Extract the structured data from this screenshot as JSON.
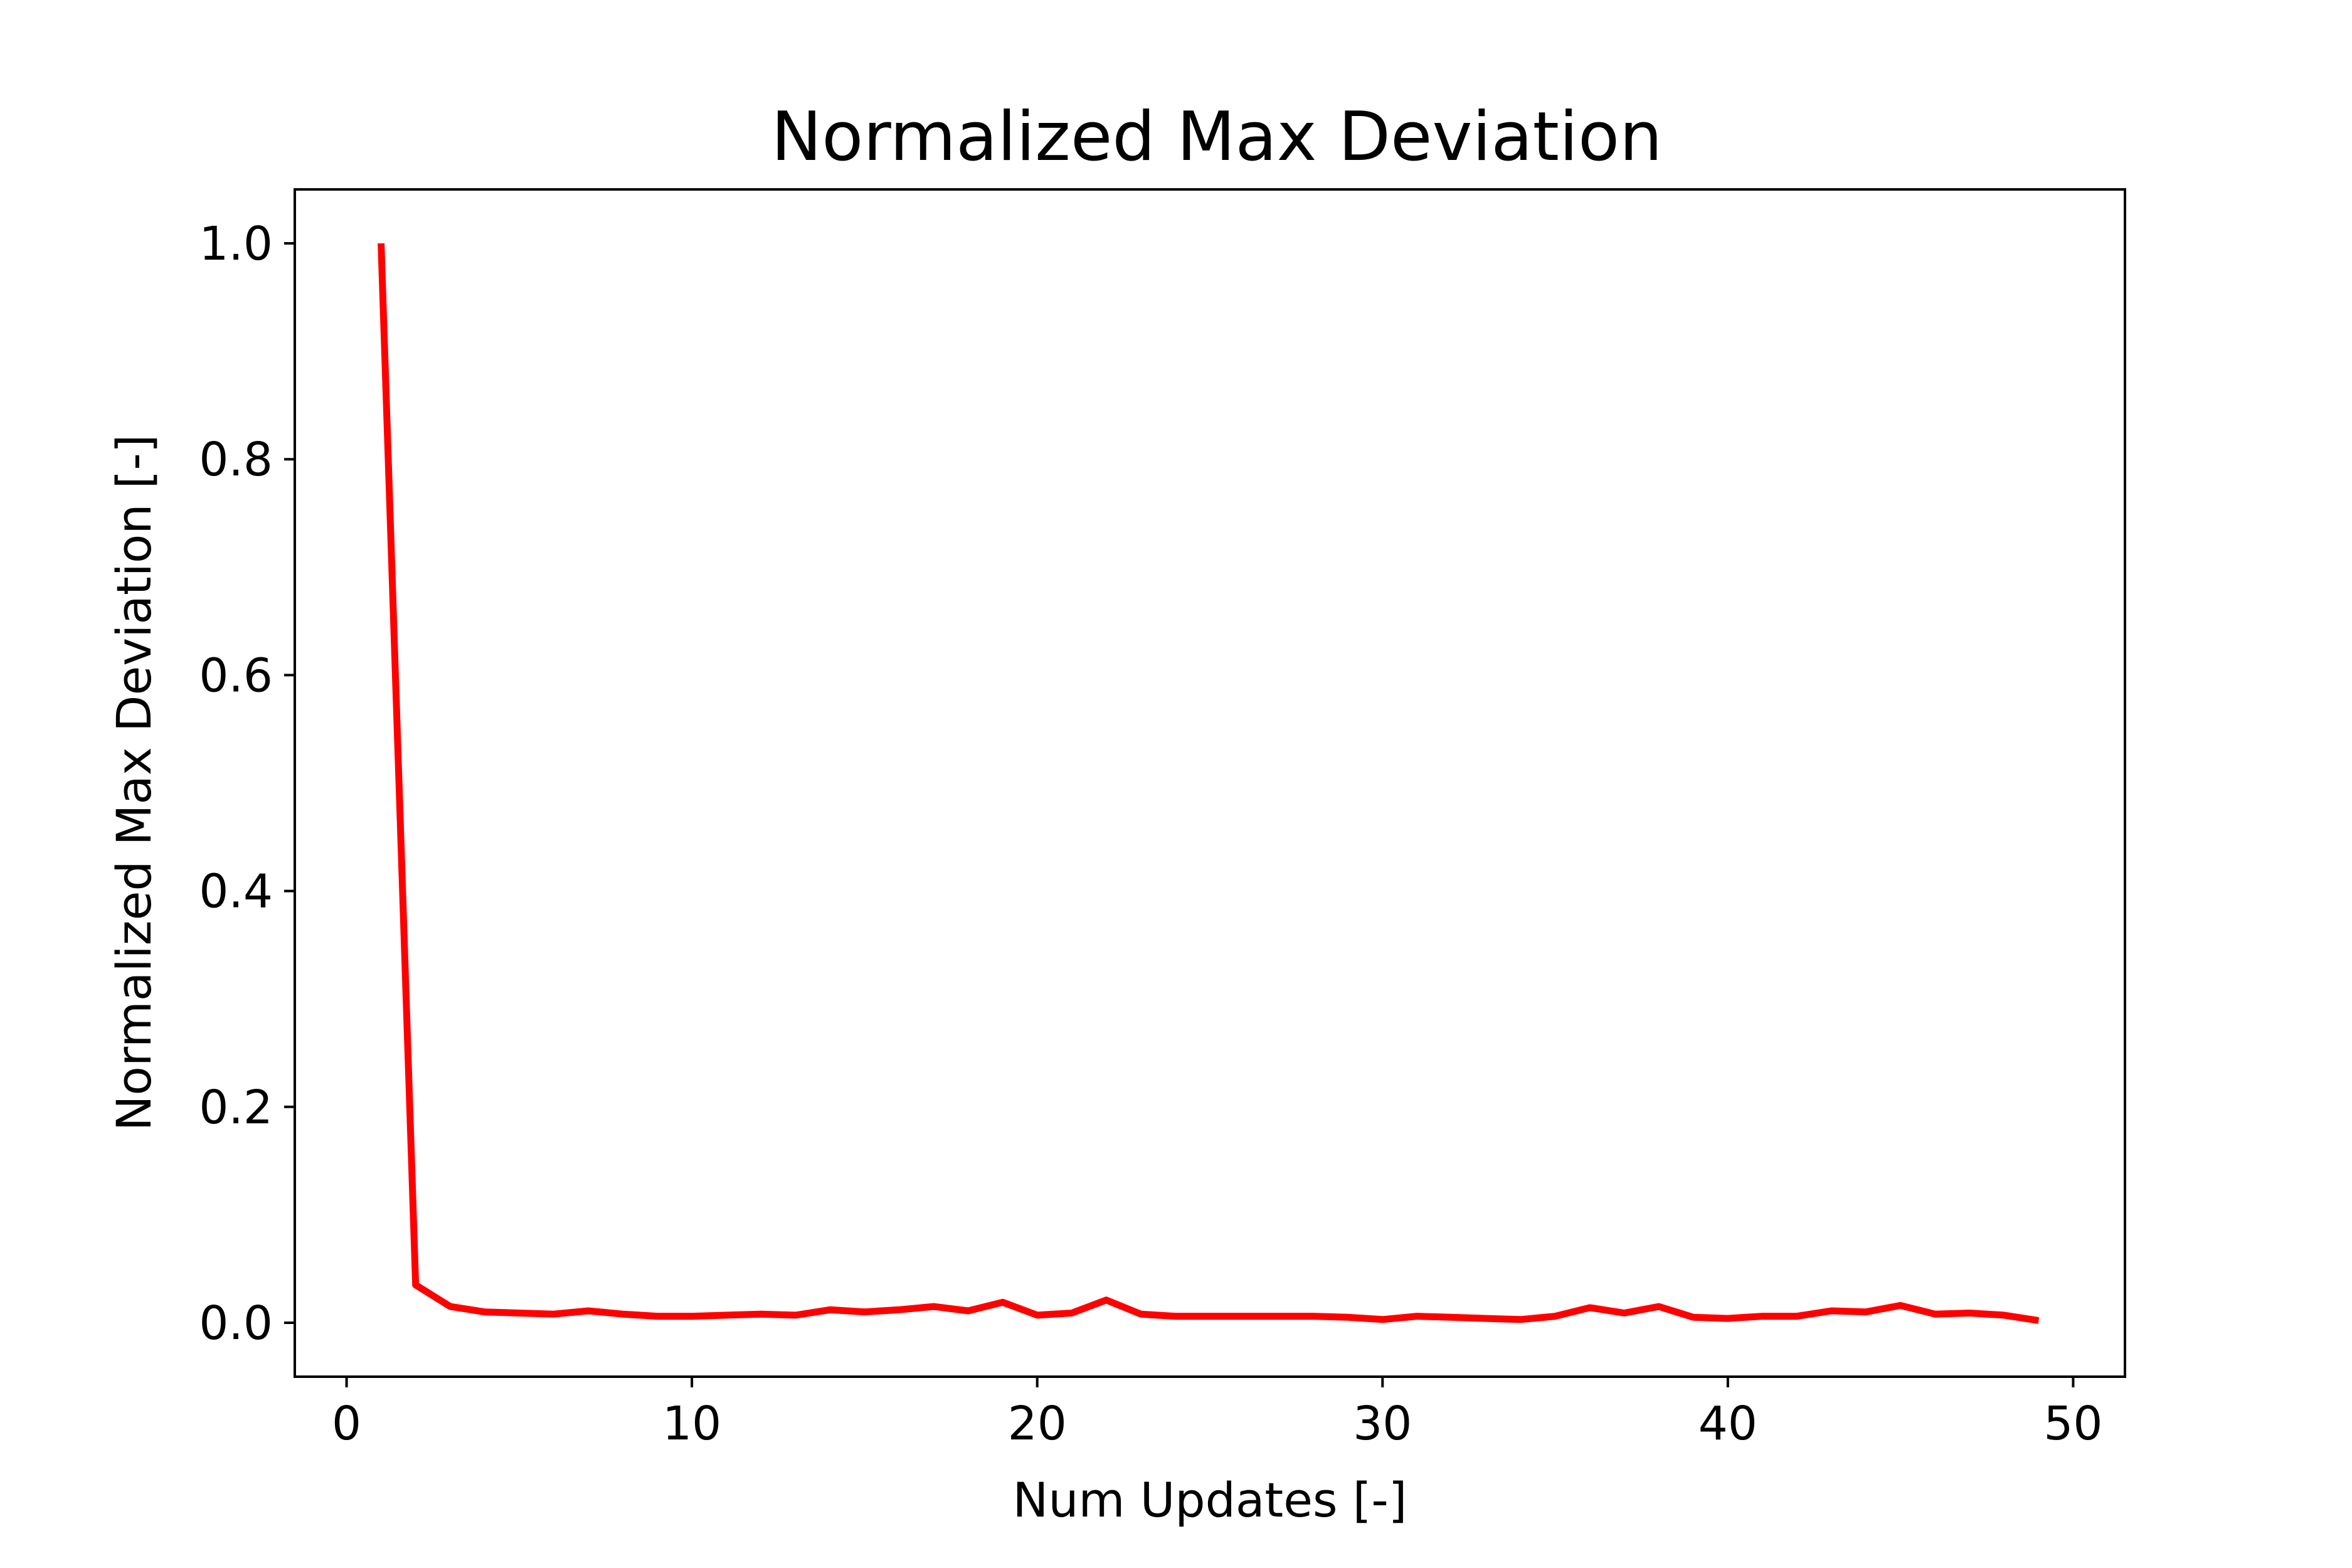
{
  "chart_data": {
    "type": "line",
    "title": "Normalized Max Deviation",
    "xlabel": "Num Updates [-]",
    "ylabel": "Normalized Max Deviation [-]",
    "xlim": [
      -1.5,
      51.5
    ],
    "ylim": [
      -0.05,
      1.05
    ],
    "xticks": [
      0,
      10,
      20,
      30,
      40,
      50
    ],
    "xtick_labels": [
      "0",
      "10",
      "20",
      "30",
      "40",
      "50"
    ],
    "yticks": [
      0.0,
      0.2,
      0.4,
      0.6,
      0.8,
      1.0
    ],
    "ytick_labels": [
      "0.0",
      "0.2",
      "0.4",
      "0.6",
      "0.8",
      "1.0"
    ],
    "grid": false,
    "legend": "none",
    "series": [
      {
        "color": "#ff0000",
        "x": [
          1,
          2,
          3,
          4,
          5,
          6,
          7,
          8,
          9,
          10,
          11,
          12,
          13,
          14,
          15,
          16,
          17,
          18,
          19,
          20,
          21,
          22,
          23,
          24,
          25,
          26,
          27,
          28,
          29,
          30,
          31,
          32,
          33,
          34,
          35,
          36,
          37,
          38,
          39,
          40,
          41,
          42,
          43,
          44,
          45,
          46,
          47,
          48,
          49
        ],
        "y": [
          1.0,
          0.035,
          0.015,
          0.01,
          0.009,
          0.008,
          0.011,
          0.008,
          0.006,
          0.006,
          0.007,
          0.008,
          0.007,
          0.012,
          0.01,
          0.012,
          0.015,
          0.011,
          0.019,
          0.007,
          0.009,
          0.021,
          0.008,
          0.006,
          0.006,
          0.006,
          0.006,
          0.006,
          0.005,
          0.003,
          0.006,
          0.005,
          0.004,
          0.003,
          0.006,
          0.014,
          0.009,
          0.015,
          0.005,
          0.004,
          0.006,
          0.006,
          0.011,
          0.01,
          0.016,
          0.008,
          0.009,
          0.007,
          0.002
        ]
      }
    ]
  }
}
